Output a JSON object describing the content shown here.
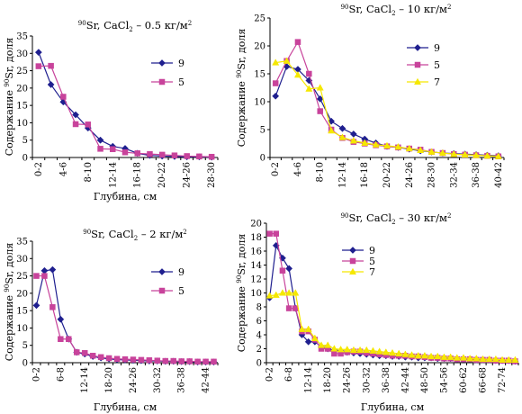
{
  "chart_data": [
    {
      "type": "line",
      "title_sup": "90",
      "title_mid": "Sr, CaCl",
      "title_sub": "2",
      "title_rest": " – 0.5 кг/м",
      "title_sup2": "2",
      "ylabel_pre": "Содержание ",
      "ylabel_sup": "90",
      "ylabel_post": "Sr, доля",
      "xlabel": "Глубина, см",
      "ylim": [
        0,
        35
      ],
      "ytick_step": 5,
      "x_count": 15,
      "x_tick_labels": [
        "0-2",
        "",
        "4-6",
        "",
        "8-10",
        "",
        "12-14",
        "",
        "16-18",
        "",
        "20-22",
        "",
        "24-26",
        "",
        "28-30"
      ],
      "legend_position": "right",
      "series": [
        {
          "name": "9",
          "color": "#1f1f8f",
          "marker": "diamond",
          "values": [
            30.3,
            21,
            16,
            12.3,
            8.5,
            5,
            3.2,
            2.6,
            1.2,
            0.6,
            0.4,
            0.3,
            0.2,
            0.2,
            0.1
          ]
        },
        {
          "name": "5",
          "color": "#c8439b",
          "marker": "square",
          "values": [
            26.3,
            26.4,
            17.5,
            9.6,
            9.5,
            2.5,
            2.4,
            1.5,
            1.2,
            1.0,
            0.8,
            0.6,
            0.4,
            0.3,
            0.2
          ]
        }
      ]
    },
    {
      "type": "line",
      "title_sup": "90",
      "title_mid": "Sr, CaCl",
      "title_sub": "2",
      "title_rest": " – 10 кг/м",
      "title_sup2": "2",
      "ylabel_pre": "Содержание ",
      "ylabel_sup": "90",
      "ylabel_post": "Sr, доля",
      "xlabel": "",
      "ylim": [
        0,
        25
      ],
      "ytick_step": 5,
      "x_count": 21,
      "x_tick_labels": [
        "0-2",
        "",
        "4-6",
        "",
        "8-10",
        "",
        "12-14",
        "",
        "16-18",
        "",
        "20-22",
        "",
        "24-26",
        "",
        "28-30",
        "",
        "32-34",
        "",
        "36-38",
        "",
        "40-42"
      ],
      "legend_position": "right",
      "series": [
        {
          "name": "9",
          "color": "#1f1f8f",
          "marker": "diamond",
          "values": [
            11,
            16.3,
            15.8,
            13.8,
            10.5,
            6.5,
            5.2,
            4.2,
            3.3,
            2.6,
            2.0,
            1.8,
            1.5,
            1.2,
            1.0,
            0.8,
            0.7,
            0.6,
            0.5,
            0.4,
            0.3
          ]
        },
        {
          "name": "5",
          "color": "#c8439b",
          "marker": "square",
          "values": [
            13.3,
            17.3,
            20.7,
            15,
            8.3,
            5.0,
            3.5,
            2.8,
            2.5,
            2.2,
            2.0,
            1.8,
            1.6,
            1.4,
            1.0,
            0.8,
            0.6,
            0.5,
            0.4,
            0.3,
            0.2
          ]
        },
        {
          "name": "7",
          "color": "#f5e800",
          "marker": "triangle",
          "values": [
            17,
            17.3,
            14.8,
            12.3,
            12.5,
            4.8,
            3.6,
            3.0,
            2.6,
            2.3,
            2.1,
            1.9,
            1.6,
            1.3,
            1.0,
            0.8,
            0.6,
            0.5,
            0.4,
            0.3,
            0.2
          ]
        }
      ]
    },
    {
      "type": "line",
      "title_sup": "90",
      "title_mid": "Sr, CaCl",
      "title_sub": "2",
      "title_rest": " – 2 кг/м",
      "title_sup2": "2",
      "ylabel_pre": "Содержание ",
      "ylabel_sup": "90",
      "ylabel_post": "Sr, доля",
      "xlabel": "Глубина, см",
      "ylim": [
        0,
        35
      ],
      "ytick_step": 5,
      "x_count": 23,
      "x_tick_labels": [
        "0-2",
        "",
        "",
        "6-8",
        "",
        "",
        "12-14",
        "",
        "",
        "18-20",
        "",
        "",
        "24-26",
        "",
        "",
        "30-32",
        "",
        "",
        "36-38",
        "",
        "",
        "42-44",
        ""
      ],
      "legend_position": "right",
      "series": [
        {
          "name": "9",
          "color": "#1f1f8f",
          "marker": "diamond",
          "values": [
            16.5,
            26.5,
            26.8,
            12.5,
            6.8,
            3.0,
            2.5,
            1.8,
            1.4,
            1.1,
            0.9,
            0.8,
            0.7,
            0.6,
            0.5,
            0.5,
            0.4,
            0.4,
            0.3,
            0.3,
            0.2,
            0.2,
            0.2
          ]
        },
        {
          "name": "5",
          "color": "#c8439b",
          "marker": "square",
          "values": [
            25,
            25,
            16,
            6.8,
            6.8,
            3.0,
            2.8,
            2.0,
            1.6,
            1.3,
            1.1,
            1.0,
            0.9,
            0.8,
            0.7,
            0.6,
            0.5,
            0.5,
            0.4,
            0.4,
            0.3,
            0.3,
            0.3
          ]
        }
      ]
    },
    {
      "type": "line",
      "title_sup": "90",
      "title_mid": "Sr, CaCl",
      "title_sub": "2",
      "title_rest": " – 30 кг/м",
      "title_sup2": "2",
      "ylabel_pre": "Содержание ",
      "ylabel_sup": "90",
      "ylabel_post": "Sr, доля",
      "xlabel": "Глубина, см",
      "ylim": [
        0,
        20
      ],
      "ytick_step": 2,
      "x_count": 39,
      "x_tick_labels": [
        "0-2",
        "",
        "",
        "6-8",
        "",
        "",
        "12-14",
        "",
        "",
        "18-20",
        "",
        "",
        "24-26",
        "",
        "",
        "30-32",
        "",
        "",
        "36-38",
        "",
        "",
        "42-44",
        "",
        "",
        "48-50",
        "",
        "",
        "54-56",
        "",
        "",
        "60-62",
        "",
        "",
        "66-68",
        "",
        "",
        "72-74",
        "",
        ""
      ],
      "legend_position": "top",
      "series": [
        {
          "name": "9",
          "color": "#1f1f8f",
          "marker": "diamond",
          "values": [
            9.3,
            16.8,
            15,
            13.5,
            7.8,
            4,
            3.0,
            3.0,
            2.3,
            2.0,
            1.8,
            1.7,
            1.5,
            1.4,
            1.3,
            1.2,
            1.1,
            1.0,
            1.0,
            0.9,
            0.9,
            0.8,
            0.8,
            0.7,
            0.7,
            0.7,
            0.6,
            0.6,
            0.6,
            0.5,
            0.5,
            0.5,
            0.4,
            0.4,
            0.4,
            0.3,
            0.3,
            0.3,
            0.2
          ]
        },
        {
          "name": "5",
          "color": "#c8439b",
          "marker": "square",
          "values": [
            18.5,
            18.5,
            13.2,
            7.8,
            7.8,
            4.5,
            4.5,
            3.3,
            2.0,
            2.0,
            1.3,
            1.3,
            1.5,
            1.6,
            1.6,
            1.4,
            1.3,
            1.2,
            1.1,
            1.0,
            1.0,
            1.0,
            0.9,
            0.9,
            0.8,
            0.7,
            0.7,
            0.6,
            0.6,
            0.5,
            0.5,
            0.5,
            0.4,
            0.4,
            0.4,
            0.3,
            0.3,
            0.3,
            0.2
          ]
        },
        {
          "name": "7",
          "color": "#f5e800",
          "marker": "triangle",
          "values": [
            9.6,
            9.7,
            10.0,
            10.0,
            10.0,
            4.8,
            4.8,
            3.5,
            2.5,
            2.5,
            2.0,
            1.9,
            1.9,
            1.8,
            1.8,
            1.8,
            1.7,
            1.6,
            1.5,
            1.4,
            1.3,
            1.2,
            1.1,
            1.0,
            1.0,
            0.9,
            0.9,
            0.8,
            0.8,
            0.7,
            0.7,
            0.6,
            0.6,
            0.5,
            0.5,
            0.5,
            0.4,
            0.4,
            0.4
          ]
        }
      ]
    }
  ]
}
